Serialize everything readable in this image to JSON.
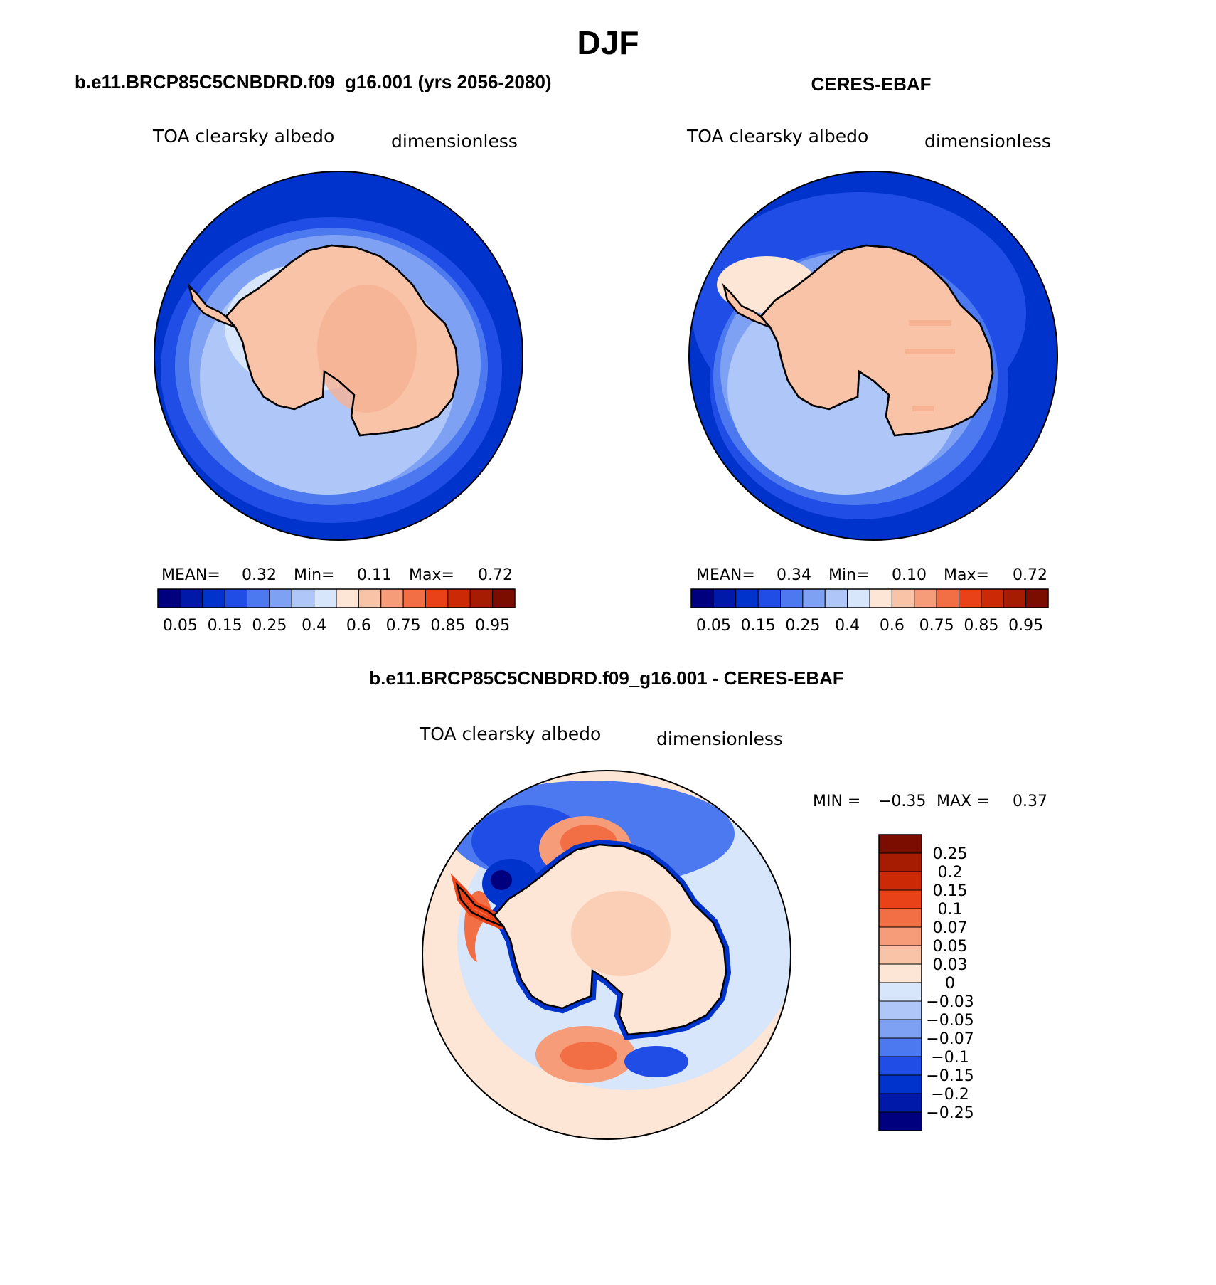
{
  "figure_title": "DJF",
  "colors": {
    "abs_scale": [
      "#00007f",
      "#0019a8",
      "#0033cc",
      "#1f4de6",
      "#4c79ef",
      "#7fa1f4",
      "#aec7f8",
      "#d8e6fb",
      "#fde6d5",
      "#f9c3a8",
      "#f69c78",
      "#f26e45",
      "#e94118",
      "#cc2a06",
      "#a51c02",
      "#7a0c00"
    ],
    "diff_scale": [
      "#00007f",
      "#0019a8",
      "#0033cc",
      "#1f4de6",
      "#4c79ef",
      "#7fa1f4",
      "#aec7f8",
      "#d8e6fb",
      "#fde6d5",
      "#f9c3a8",
      "#f69c78",
      "#f26e45",
      "#e94118",
      "#cc2a06",
      "#a51c02",
      "#7a0c00"
    ],
    "coastline": "#000000"
  },
  "panels": [
    {
      "title": "b.e11.BRCP85C5CNBDRD.f09_g16.001 (yrs 2056-2080)",
      "variable": "TOA clearsky albedo",
      "units": "dimensionless",
      "stats": {
        "mean_label": "MEAN=",
        "mean": "0.32",
        "min_label": "Min=",
        "min": "0.11",
        "max_label": "Max=",
        "max": "0.72"
      },
      "ticks": [
        "0.05",
        "0.15",
        "0.25",
        "0.4",
        "0.6",
        "0.75",
        "0.85",
        "0.95"
      ]
    },
    {
      "title": "CERES-EBAF",
      "variable": "TOA clearsky albedo",
      "units": "dimensionless",
      "stats": {
        "mean_label": "MEAN=",
        "mean": "0.34",
        "min_label": "Min=",
        "min": "0.10",
        "max_label": "Max=",
        "max": "0.72"
      },
      "ticks": [
        "0.05",
        "0.15",
        "0.25",
        "0.4",
        "0.6",
        "0.75",
        "0.85",
        "0.95"
      ]
    },
    {
      "title": "b.e11.BRCP85C5CNBDRD.f09_g16.001 - CERES-EBAF",
      "variable": "TOA clearsky albedo",
      "units": "dimensionless",
      "minmax": {
        "min_label": "MIN =",
        "min": "−0.35",
        "max_label": "MAX =",
        "max": "0.37"
      },
      "ticks": [
        "0.25",
        "0.2",
        "0.15",
        "0.1",
        "0.07",
        "0.05",
        "0.03",
        "0",
        "−0.03",
        "−0.05",
        "−0.07",
        "−0.1",
        "−0.15",
        "−0.2",
        "−0.25"
      ]
    }
  ]
}
